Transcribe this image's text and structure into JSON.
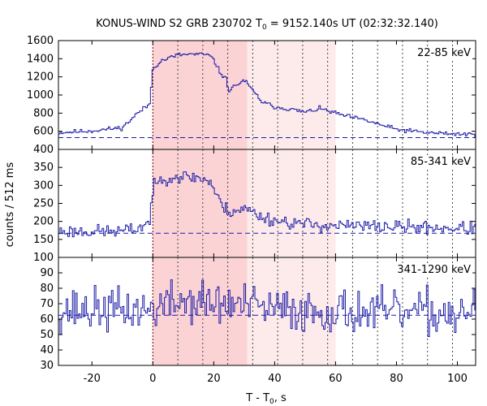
{
  "chart_data": {
    "type": "line",
    "title": "KONUS-WIND S2 GRB 230702 T",
    "title_sub": "0",
    "title_rest": " = 9152.140s UT (02:32:32.140)",
    "xlabel": "T - T",
    "xlabel_sub": "0",
    "xlabel_rest": ", s",
    "ylabel": "counts / 512 ms",
    "xlim": [
      -31,
      106
    ],
    "x_ticks": [
      -20,
      0,
      20,
      40,
      60,
      80,
      100
    ],
    "x_tick_labels": [
      "-20",
      "0",
      "20",
      "40",
      "60",
      "80",
      "100"
    ],
    "bin_width": 0.512,
    "colors": {
      "series": "#1a1aa6",
      "shade_dark": "#fbd3d5",
      "shade_light": "#fdeaea",
      "trigger_line": "#8b1a1a",
      "marker_line": "#444444"
    },
    "shaded_regions": [
      {
        "from": 0,
        "to": 31,
        "level": "dark"
      },
      {
        "from": 31,
        "to": 60,
        "level": "light"
      }
    ],
    "trigger_time": 0,
    "spectral_markers": [
      8.2,
      16.4,
      24.6,
      32.8,
      41.0,
      49.2,
      57.4,
      65.6,
      73.8,
      82.0,
      90.2,
      98.4
    ],
    "panels": [
      {
        "band": "22-85 keV",
        "ylim": [
          400,
          1600
        ],
        "y_ticks": [
          400,
          600,
          800,
          1000,
          1200,
          1400,
          1600
        ],
        "y_tick_labels": [
          "400",
          "600",
          "800",
          "1000",
          "1200",
          "1400",
          "1600"
        ],
        "background": 530,
        "profile": [
          [
            -31,
            585
          ],
          [
            -20,
            605
          ],
          [
            -10,
            640
          ],
          [
            -5,
            800
          ],
          [
            -1,
            900
          ],
          [
            0,
            1300
          ],
          [
            3,
            1380
          ],
          [
            8,
            1440
          ],
          [
            12,
            1450
          ],
          [
            18,
            1445
          ],
          [
            20,
            1390
          ],
          [
            22,
            1250
          ],
          [
            24,
            1180
          ],
          [
            25,
            1050
          ],
          [
            27,
            1100
          ],
          [
            30,
            1165
          ],
          [
            33,
            1040
          ],
          [
            36,
            920
          ],
          [
            40,
            870
          ],
          [
            45,
            845
          ],
          [
            50,
            810
          ],
          [
            55,
            850
          ],
          [
            58,
            820
          ],
          [
            62,
            780
          ],
          [
            70,
            720
          ],
          [
            75,
            670
          ],
          [
            80,
            620
          ],
          [
            90,
            585
          ],
          [
            100,
            570
          ],
          [
            106,
            565
          ]
        ],
        "noise": 12,
        "seed": 11
      },
      {
        "band": "85-341 keV",
        "ylim": [
          100,
          400
        ],
        "y_ticks": [
          100,
          150,
          200,
          250,
          300,
          350
        ],
        "y_tick_labels": [
          "100",
          "150",
          "200",
          "250",
          "300",
          "350"
        ],
        "background": 167,
        "profile": [
          [
            -31,
            172
          ],
          [
            -10,
            173
          ],
          [
            -5,
            180
          ],
          [
            -1,
            200
          ],
          [
            0,
            290
          ],
          [
            3,
            320
          ],
          [
            8,
            325
          ],
          [
            15,
            322
          ],
          [
            19,
            310
          ],
          [
            21,
            270
          ],
          [
            23,
            240
          ],
          [
            25,
            228
          ],
          [
            28,
            232
          ],
          [
            31,
            235
          ],
          [
            35,
            215
          ],
          [
            40,
            203
          ],
          [
            50,
            192
          ],
          [
            60,
            188
          ],
          [
            80,
            185
          ],
          [
            106,
            180
          ]
        ],
        "noise": 9,
        "seed": 23
      },
      {
        "band": "341-1290 keV",
        "ylim": [
          30,
          100
        ],
        "y_ticks": [
          30,
          40,
          50,
          60,
          70,
          80,
          90
        ],
        "y_tick_labels": [
          "30",
          "40",
          "50",
          "60",
          "70",
          "80",
          "90"
        ],
        "background": 62.5,
        "profile": [
          [
            -31,
            66
          ],
          [
            0,
            66
          ],
          [
            1,
            68
          ],
          [
            10,
            72
          ],
          [
            20,
            70
          ],
          [
            30,
            69
          ],
          [
            40,
            66
          ],
          [
            60,
            65
          ],
          [
            80,
            64
          ],
          [
            106,
            64
          ]
        ],
        "noise": 7,
        "seed": 37
      }
    ]
  }
}
